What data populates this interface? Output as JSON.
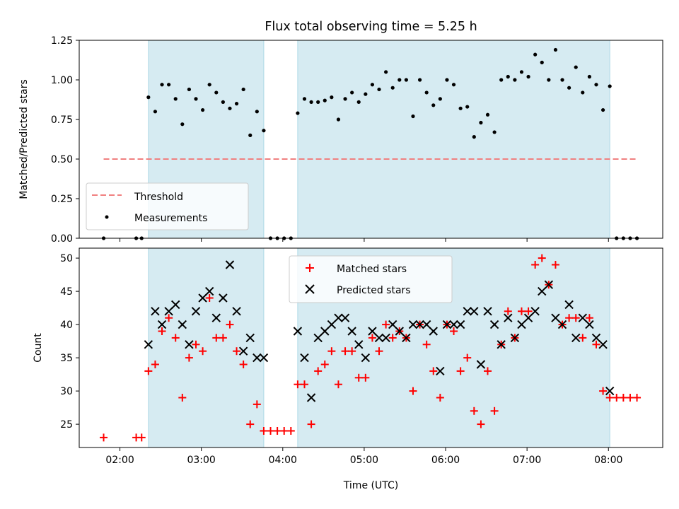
{
  "chart_data": [
    {
      "type": "scatter",
      "title": "Flux total observing time = 5.25 h",
      "xlabel": "",
      "ylabel": "Matched/Predicted stars",
      "xlim": [
        "01:30",
        "08:40"
      ],
      "ylim": [
        0,
        1.25
      ],
      "yticks": [
        "0.00",
        "0.25",
        "0.50",
        "0.75",
        "1.00",
        "1.25"
      ],
      "grid": false,
      "legend_position": "lower-left",
      "shaded_intervals": [
        [
          "02:21",
          "03:46"
        ],
        [
          "04:11",
          "08:01"
        ]
      ],
      "threshold": {
        "name": "Threshold",
        "value": 0.5,
        "x_range": [
          "01:48",
          "08:22"
        ],
        "color": "#f08080"
      },
      "series": [
        {
          "name": "Measurements",
          "color": "#000000",
          "points": [
            [
              "01:48",
              0
            ],
            [
              "02:12",
              0
            ],
            [
              "02:16",
              0
            ],
            [
              "02:21",
              0.89
            ],
            [
              "02:26",
              0.8
            ],
            [
              "02:31",
              0.97
            ],
            [
              "02:36",
              0.97
            ],
            [
              "02:41",
              0.88
            ],
            [
              "02:46",
              0.72
            ],
            [
              "02:51",
              0.94
            ],
            [
              "02:56",
              0.88
            ],
            [
              "03:01",
              0.81
            ],
            [
              "03:06",
              0.97
            ],
            [
              "03:11",
              0.92
            ],
            [
              "03:16",
              0.86
            ],
            [
              "03:21",
              0.82
            ],
            [
              "03:26",
              0.85
            ],
            [
              "03:31",
              0.94
            ],
            [
              "03:36",
              0.65
            ],
            [
              "03:41",
              0.8
            ],
            [
              "03:46",
              0.68
            ],
            [
              "03:51",
              0
            ],
            [
              "03:56",
              0
            ],
            [
              "04:01",
              0
            ],
            [
              "04:06",
              0
            ],
            [
              "04:11",
              0.79
            ],
            [
              "04:16",
              0.88
            ],
            [
              "04:21",
              0.86
            ],
            [
              "04:26",
              0.86
            ],
            [
              "04:31",
              0.87
            ],
            [
              "04:36",
              0.89
            ],
            [
              "04:41",
              0.75
            ],
            [
              "04:46",
              0.88
            ],
            [
              "04:51",
              0.92
            ],
            [
              "04:56",
              0.86
            ],
            [
              "05:01",
              0.91
            ],
            [
              "05:06",
              0.97
            ],
            [
              "05:11",
              0.94
            ],
            [
              "05:16",
              1.05
            ],
            [
              "05:21",
              0.95
            ],
            [
              "05:26",
              1.0
            ],
            [
              "05:31",
              1.0
            ],
            [
              "05:36",
              0.77
            ],
            [
              "05:41",
              1.0
            ],
            [
              "05:46",
              0.92
            ],
            [
              "05:51",
              0.84
            ],
            [
              "05:56",
              0.88
            ],
            [
              "06:01",
              1.0
            ],
            [
              "06:06",
              0.97
            ],
            [
              "06:11",
              0.82
            ],
            [
              "06:16",
              0.83
            ],
            [
              "06:21",
              0.64
            ],
            [
              "06:26",
              0.73
            ],
            [
              "06:31",
              0.78
            ],
            [
              "06:36",
              0.67
            ],
            [
              "06:41",
              1.0
            ],
            [
              "06:46",
              1.02
            ],
            [
              "06:51",
              1.0
            ],
            [
              "06:56",
              1.05
            ],
            [
              "07:01",
              1.02
            ],
            [
              "07:06",
              1.16
            ],
            [
              "07:11",
              1.11
            ],
            [
              "07:16",
              1.0
            ],
            [
              "07:21",
              1.19
            ],
            [
              "07:26",
              1.0
            ],
            [
              "07:31",
              0.95
            ],
            [
              "07:36",
              1.08
            ],
            [
              "07:41",
              0.92
            ],
            [
              "07:46",
              1.02
            ],
            [
              "07:51",
              0.97
            ],
            [
              "07:56",
              0.81
            ],
            [
              "08:01",
              0.96
            ],
            [
              "08:06",
              0
            ],
            [
              "08:11",
              0
            ],
            [
              "08:16",
              0
            ],
            [
              "08:21",
              0
            ]
          ]
        }
      ]
    },
    {
      "type": "scatter",
      "title": "",
      "xlabel": "Time (UTC)",
      "ylabel": "Count",
      "xlim": [
        "01:30",
        "08:40"
      ],
      "ylim": [
        21.5,
        51.5
      ],
      "xticks": [
        "02:00",
        "03:00",
        "04:00",
        "05:00",
        "06:00",
        "07:00",
        "08:00"
      ],
      "yticks": [
        "25",
        "30",
        "35",
        "40",
        "45",
        "50"
      ],
      "grid": false,
      "legend_position": "upper-center",
      "shaded_intervals": [
        [
          "02:21",
          "03:46"
        ],
        [
          "04:11",
          "08:01"
        ]
      ],
      "series": [
        {
          "name": "Matched stars",
          "color": "#ff0000",
          "marker": "plus",
          "points": [
            [
              "01:48",
              23
            ],
            [
              "02:12",
              23
            ],
            [
              "02:16",
              23
            ],
            [
              "02:21",
              33
            ],
            [
              "02:26",
              34
            ],
            [
              "02:31",
              39
            ],
            [
              "02:36",
              41
            ],
            [
              "02:41",
              38
            ],
            [
              "02:46",
              29
            ],
            [
              "02:51",
              35
            ],
            [
              "02:56",
              37
            ],
            [
              "03:01",
              36
            ],
            [
              "03:06",
              44
            ],
            [
              "03:11",
              38
            ],
            [
              "03:16",
              38
            ],
            [
              "03:21",
              40
            ],
            [
              "03:26",
              36
            ],
            [
              "03:31",
              34
            ],
            [
              "03:36",
              25
            ],
            [
              "03:41",
              28
            ],
            [
              "03:46",
              24
            ],
            [
              "03:51",
              24
            ],
            [
              "03:56",
              24
            ],
            [
              "04:01",
              24
            ],
            [
              "04:06",
              24
            ],
            [
              "04:11",
              31
            ],
            [
              "04:16",
              31
            ],
            [
              "04:21",
              25
            ],
            [
              "04:26",
              33
            ],
            [
              "04:31",
              34
            ],
            [
              "04:36",
              36
            ],
            [
              "04:41",
              31
            ],
            [
              "04:46",
              36
            ],
            [
              "04:51",
              36
            ],
            [
              "04:56",
              32
            ],
            [
              "05:01",
              32
            ],
            [
              "05:06",
              38
            ],
            [
              "05:11",
              36
            ],
            [
              "05:16",
              40
            ],
            [
              "05:21",
              38
            ],
            [
              "05:26",
              39
            ],
            [
              "05:31",
              38
            ],
            [
              "05:36",
              30
            ],
            [
              "05:41",
              40
            ],
            [
              "05:46",
              37
            ],
            [
              "05:51",
              33
            ],
            [
              "05:56",
              29
            ],
            [
              "06:01",
              40
            ],
            [
              "06:06",
              39
            ],
            [
              "06:11",
              33
            ],
            [
              "06:16",
              35
            ],
            [
              "06:21",
              27
            ],
            [
              "06:26",
              25
            ],
            [
              "06:31",
              33
            ],
            [
              "06:36",
              27
            ],
            [
              "06:41",
              37
            ],
            [
              "06:46",
              42
            ],
            [
              "06:51",
              38
            ],
            [
              "06:56",
              42
            ],
            [
              "07:01",
              42
            ],
            [
              "07:06",
              49
            ],
            [
              "07:11",
              50
            ],
            [
              "07:16",
              46
            ],
            [
              "07:21",
              49
            ],
            [
              "07:26",
              40
            ],
            [
              "07:31",
              41
            ],
            [
              "07:36",
              41
            ],
            [
              "07:41",
              38
            ],
            [
              "07:46",
              41
            ],
            [
              "07:51",
              37
            ],
            [
              "07:56",
              30
            ],
            [
              "08:01",
              29
            ],
            [
              "08:06",
              29
            ],
            [
              "08:11",
              29
            ],
            [
              "08:16",
              29
            ],
            [
              "08:21",
              29
            ]
          ]
        },
        {
          "name": "Predicted stars",
          "color": "#000000",
          "marker": "x",
          "points": [
            [
              "02:21",
              37
            ],
            [
              "02:26",
              42
            ],
            [
              "02:31",
              40
            ],
            [
              "02:36",
              42
            ],
            [
              "02:41",
              43
            ],
            [
              "02:46",
              40
            ],
            [
              "02:51",
              37
            ],
            [
              "02:56",
              42
            ],
            [
              "03:01",
              44
            ],
            [
              "03:06",
              45
            ],
            [
              "03:11",
              41
            ],
            [
              "03:16",
              44
            ],
            [
              "03:21",
              49
            ],
            [
              "03:26",
              42
            ],
            [
              "03:31",
              36
            ],
            [
              "03:36",
              38
            ],
            [
              "03:41",
              35
            ],
            [
              "03:46",
              35
            ],
            [
              "04:11",
              39
            ],
            [
              "04:16",
              35
            ],
            [
              "04:21",
              29
            ],
            [
              "04:26",
              38
            ],
            [
              "04:31",
              39
            ],
            [
              "04:36",
              40
            ],
            [
              "04:41",
              41
            ],
            [
              "04:46",
              41
            ],
            [
              "04:51",
              39
            ],
            [
              "04:56",
              37
            ],
            [
              "05:01",
              35
            ],
            [
              "05:06",
              39
            ],
            [
              "05:11",
              38
            ],
            [
              "05:16",
              38
            ],
            [
              "05:21",
              40
            ],
            [
              "05:26",
              39
            ],
            [
              "05:31",
              38
            ],
            [
              "05:36",
              40
            ],
            [
              "05:41",
              40
            ],
            [
              "05:46",
              40
            ],
            [
              "05:51",
              39
            ],
            [
              "05:56",
              33
            ],
            [
              "06:01",
              40
            ],
            [
              "06:06",
              40
            ],
            [
              "06:11",
              40
            ],
            [
              "06:16",
              42
            ],
            [
              "06:21",
              42
            ],
            [
              "06:26",
              34
            ],
            [
              "06:31",
              42
            ],
            [
              "06:36",
              40
            ],
            [
              "06:41",
              37
            ],
            [
              "06:46",
              41
            ],
            [
              "06:51",
              38
            ],
            [
              "06:56",
              40
            ],
            [
              "07:01",
              41
            ],
            [
              "07:06",
              42
            ],
            [
              "07:11",
              45
            ],
            [
              "07:16",
              46
            ],
            [
              "07:21",
              41
            ],
            [
              "07:26",
              40
            ],
            [
              "07:31",
              43
            ],
            [
              "07:36",
              38
            ],
            [
              "07:41",
              41
            ],
            [
              "07:46",
              40
            ],
            [
              "07:51",
              38
            ],
            [
              "07:56",
              37
            ],
            [
              "08:01",
              30
            ]
          ]
        }
      ]
    }
  ]
}
